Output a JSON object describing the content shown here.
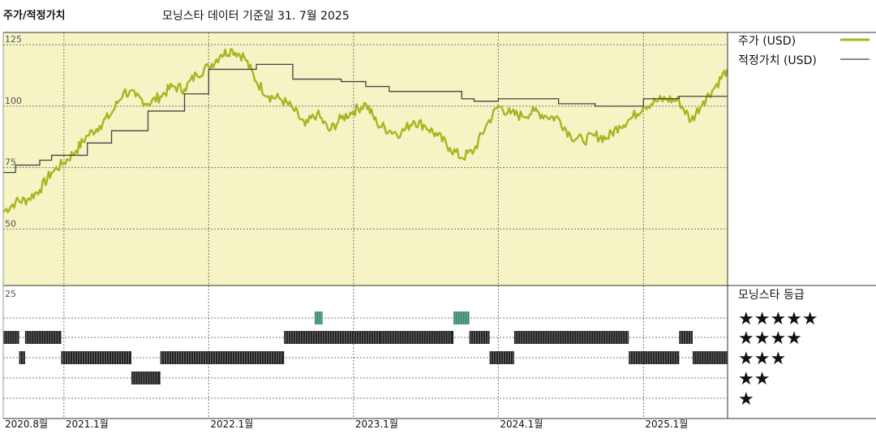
{
  "header": {
    "title": "주가/적정가치",
    "subtitle": "모닝스타 데이터 기준일 31. 7월 2025"
  },
  "colors": {
    "price_line": "#a8b520",
    "fair_value_line": "#444444",
    "upper_panel_bg": "#f6f3c4",
    "rating_bar": "#222222",
    "five_star_bar": "#3d8a6a"
  },
  "chart_data": [
    {
      "type": "line",
      "panel": "price",
      "y_ticks": [
        "125",
        "100",
        "75",
        "50"
      ],
      "y_tick_values": [
        125,
        100,
        75,
        50
      ],
      "ylim": [
        27,
        130
      ],
      "xlim": [
        "2020-08-01",
        "2025-08-01"
      ],
      "x_ticks": [
        "2020.8월",
        "2021.1월",
        "2022.1월",
        "2023.1월",
        "2024.1월",
        "2025.1월"
      ],
      "x_tick_dates": [
        "2020-08-01",
        "2021-01-01",
        "2022-01-01",
        "2023-01-01",
        "2024-01-01",
        "2025-01-01"
      ],
      "series": [
        {
          "name": "주가 (USD)",
          "style": "price",
          "x": [
            "2020-08-01",
            "2020-09-01",
            "2020-10-01",
            "2020-11-01",
            "2020-12-01",
            "2021-01-01",
            "2021-02-01",
            "2021-03-01",
            "2021-04-01",
            "2021-05-01",
            "2021-06-01",
            "2021-07-01",
            "2021-08-01",
            "2021-09-01",
            "2021-10-01",
            "2021-11-01",
            "2021-12-01",
            "2022-01-01",
            "2022-02-01",
            "2022-03-01",
            "2022-04-01",
            "2022-05-01",
            "2022-06-01",
            "2022-07-01",
            "2022-08-01",
            "2022-09-01",
            "2022-10-01",
            "2022-11-01",
            "2022-12-01",
            "2023-01-01",
            "2023-02-01",
            "2023-03-01",
            "2023-04-01",
            "2023-05-01",
            "2023-06-01",
            "2023-07-01",
            "2023-08-01",
            "2023-09-01",
            "2023-10-01",
            "2023-11-01",
            "2023-12-01",
            "2024-01-01",
            "2024-02-01",
            "2024-03-01",
            "2024-04-01",
            "2024-05-01",
            "2024-06-01",
            "2024-07-01",
            "2024-08-01",
            "2024-09-01",
            "2024-10-01",
            "2024-11-01",
            "2024-12-01",
            "2025-01-01",
            "2025-02-01",
            "2025-03-01",
            "2025-04-01",
            "2025-05-01",
            "2025-06-01",
            "2025-07-01",
            "2025-07-31"
          ],
          "values": [
            57,
            61,
            62,
            66,
            73,
            77,
            82,
            88,
            92,
            97,
            106,
            104,
            101,
            104,
            108,
            107,
            113,
            116,
            121,
            123,
            120,
            110,
            104,
            103,
            99,
            92,
            97,
            90,
            95,
            98,
            101,
            93,
            90,
            89,
            94,
            92,
            88,
            83,
            79,
            82,
            92,
            100,
            97,
            96,
            98,
            96,
            95,
            88,
            86,
            88,
            87,
            92,
            95,
            100,
            102,
            103,
            102,
            94,
            102,
            108,
            115
          ]
        },
        {
          "name": "적정가치 (USD)",
          "style": "fair",
          "x": [
            "2020-08-01",
            "2020-09-01",
            "2020-11-01",
            "2020-12-01",
            "2021-03-01",
            "2021-05-01",
            "2021-08-01",
            "2021-11-01",
            "2022-01-01",
            "2022-05-01",
            "2022-08-01",
            "2022-12-01",
            "2023-02-01",
            "2023-04-01",
            "2023-10-01",
            "2023-11-01",
            "2024-01-01",
            "2024-06-01",
            "2024-09-01",
            "2025-01-01",
            "2025-04-01",
            "2025-07-31"
          ],
          "values": [
            73,
            76,
            78,
            80,
            85,
            90,
            98,
            105,
            115,
            117,
            111,
            110,
            108,
            106,
            103,
            102,
            103,
            101,
            100,
            103,
            104,
            104
          ]
        }
      ]
    },
    {
      "type": "bar",
      "panel": "rating",
      "title": "모닝스타 등급",
      "y_tick": "25",
      "levels": [
        "★★★★★",
        "★★★★",
        "★★★",
        "★★",
        "★"
      ],
      "segments": [
        {
          "start": "2020-08-01",
          "end": "2020-09-10",
          "stars": 4
        },
        {
          "start": "2020-09-10",
          "end": "2020-09-25",
          "stars": 3
        },
        {
          "start": "2020-09-25",
          "end": "2020-12-25",
          "stars": 4
        },
        {
          "start": "2020-12-25",
          "end": "2021-06-20",
          "stars": 3
        },
        {
          "start": "2021-06-20",
          "end": "2021-09-01",
          "stars": 2
        },
        {
          "start": "2021-09-01",
          "end": "2022-07-10",
          "stars": 3
        },
        {
          "start": "2022-07-10",
          "end": "2023-03-10",
          "stars": 4
        },
        {
          "start": "2023-03-10",
          "end": "2023-09-10",
          "stars": 4
        },
        {
          "start": "2022-09-25",
          "end": "2022-10-15",
          "stars": 5
        },
        {
          "start": "2023-09-10",
          "end": "2023-10-20",
          "stars": 5
        },
        {
          "start": "2023-10-20",
          "end": "2023-12-10",
          "stars": 4
        },
        {
          "start": "2023-12-10",
          "end": "2024-02-10",
          "stars": 3
        },
        {
          "start": "2024-02-10",
          "end": "2024-11-25",
          "stars": 4
        },
        {
          "start": "2024-11-25",
          "end": "2025-04-01",
          "stars": 3
        },
        {
          "start": "2025-04-01",
          "end": "2025-05-05",
          "stars": 4
        },
        {
          "start": "2025-05-05",
          "end": "2025-07-31",
          "stars": 3
        }
      ]
    }
  ]
}
